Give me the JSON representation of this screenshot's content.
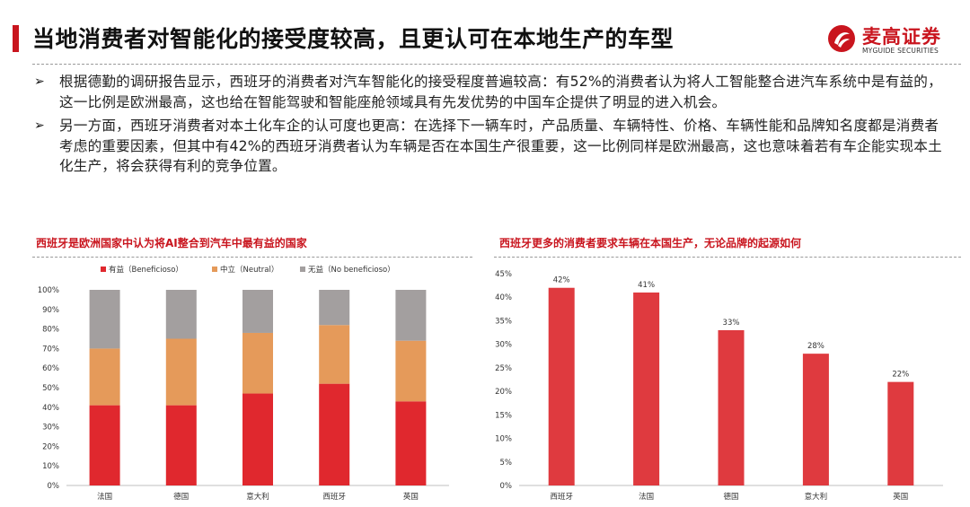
{
  "header": {
    "title": "当地消费者对智能化的接受度较高，且更认可在本地生产的车型",
    "logo_cn": "麦高证券",
    "logo_en": "MYGUIDE SECURITIES",
    "brand_color": "#c9151e"
  },
  "bullets": [
    "根据德勤的调研报告显示，西班牙的消费者对汽车智能化的接受程度普遍较高：有52%的消费者认为将人工智能整合进汽车系统中是有益的，这一比例是欧洲最高，这也给在智能驾驶和智能座舱领域具有先发优势的中国车企提供了明显的进入机会。",
    "另一方面，西班牙消费者对本土化车企的认可度也更高：在选择下一辆车时，产品质量、车辆特性、价格、车辆性能和品牌知名度都是消费者考虑的重要因素，但其中有42%的西班牙消费者认为车辆是否在本国生产很重要，这一比例同样是欧洲最高，这也意味着若有车企能实现本土化生产，将会获得有利的竞争位置。"
  ],
  "chart_data": [
    {
      "type": "bar",
      "stacked": true,
      "title": "西班牙是欧洲国家中认为将AI整合到汽车中最有益的国家",
      "categories": [
        "法国",
        "德国",
        "意大利",
        "西班牙",
        "英国"
      ],
      "series": [
        {
          "name": "有益（Beneficioso）",
          "color": "#e0282e",
          "values": [
            41,
            41,
            47,
            52,
            43
          ]
        },
        {
          "name": "中立（Neutral）",
          "color": "#e59a5a",
          "values": [
            29,
            34,
            31,
            30,
            31
          ]
        },
        {
          "name": "无益（No beneficioso）",
          "color": "#a39f9f",
          "values": [
            30,
            25,
            22,
            18,
            26
          ]
        }
      ],
      "yticks": [
        "0%",
        "10%",
        "20%",
        "30%",
        "40%",
        "50%",
        "60%",
        "70%",
        "80%",
        "90%",
        "100%"
      ],
      "ylim": [
        0,
        100
      ],
      "legend": "top"
    },
    {
      "type": "bar",
      "title": "西班牙更多的消费者要求车辆在本国生产，无论品牌的起源如何",
      "categories": [
        "西班牙",
        "法国",
        "德国",
        "意大利",
        "英国"
      ],
      "values": [
        42,
        41,
        33,
        28,
        22
      ],
      "data_labels": [
        "42%",
        "41%",
        "33%",
        "28%",
        "22%"
      ],
      "color": "#df3a3f",
      "yticks": [
        "0%",
        "5%",
        "10%",
        "15%",
        "20%",
        "25%",
        "30%",
        "35%",
        "40%",
        "45%"
      ],
      "ylim": [
        0,
        45
      ]
    }
  ]
}
